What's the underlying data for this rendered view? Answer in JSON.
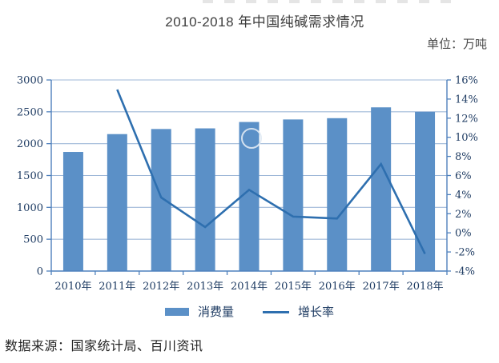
{
  "chart_data": {
    "type": "bar+line",
    "title": "2010-2018 年中国纯碱需求情况",
    "unit_label": "单位：万吨",
    "source": "数据来源：国家统计局、百川资讯",
    "categories": [
      "2010年",
      "2011年",
      "2012年",
      "2013年",
      "2014年",
      "2015年",
      "2016年",
      "2017年",
      "2018年"
    ],
    "series": [
      {
        "name": "消费量",
        "type": "bar",
        "axis": "left",
        "unit": "万吨",
        "values": [
          1870,
          2150,
          2230,
          2240,
          2340,
          2380,
          2400,
          2570,
          2500
        ]
      },
      {
        "name": "增长率",
        "type": "line",
        "axis": "right",
        "unit": "%",
        "values": [
          null,
          15,
          3.7,
          0.6,
          4.5,
          1.7,
          1.5,
          7.2,
          -2.2
        ]
      }
    ],
    "left_axis": {
      "min": 0,
      "max": 3000,
      "step": 500,
      "tick_labels": [
        "0",
        "500",
        "1000",
        "1500",
        "2000",
        "2500",
        "3000"
      ]
    },
    "right_axis": {
      "min": -4,
      "max": 16,
      "step": 2,
      "tick_labels": [
        "-4%",
        "-2%",
        "0%",
        "2%",
        "4%",
        "6%",
        "8%",
        "10%",
        "12%",
        "14%",
        "16%"
      ]
    },
    "legend": {
      "position": "bottom",
      "items": [
        "消费量",
        "增长率"
      ]
    },
    "grid": true,
    "colors": {
      "bar": "#5B90C7",
      "line": "#2E6FAF",
      "grid": "#9FB8D8",
      "axis": "#4F81BD",
      "tick_text": "#1F3C63"
    }
  }
}
